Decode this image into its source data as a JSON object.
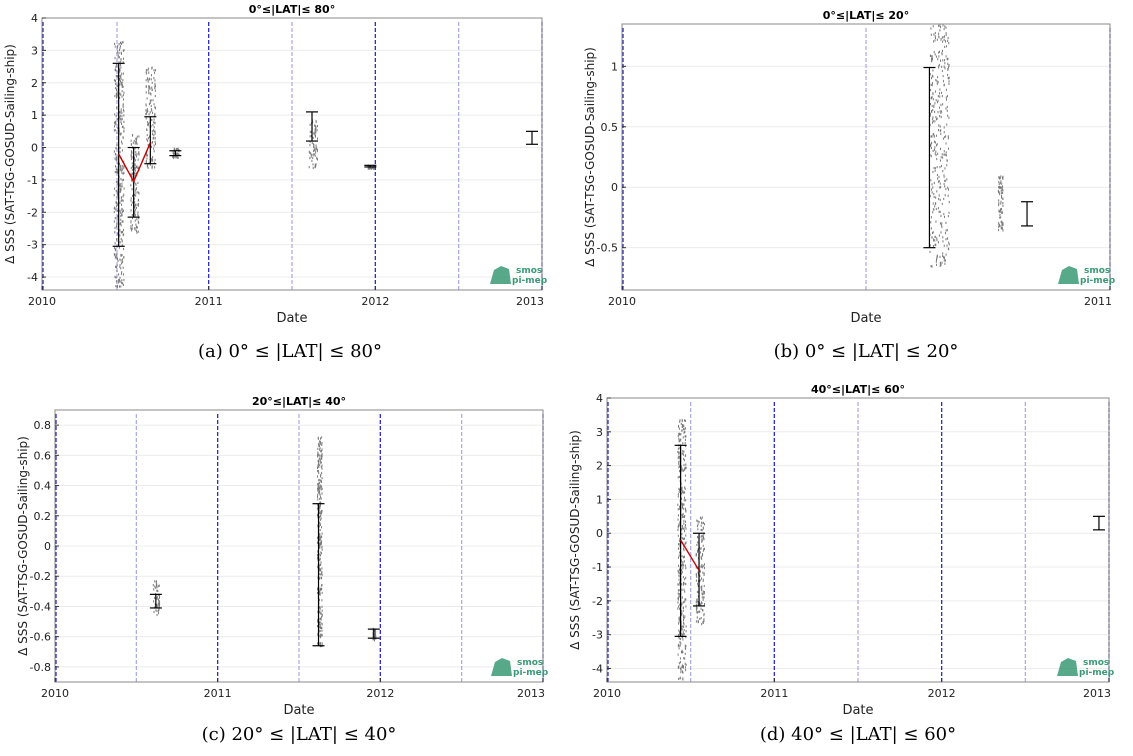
{
  "chart_data": [
    {
      "type": "scatter",
      "title": "0°≤|LAT|≤ 80°",
      "xlabel": "Date",
      "ylabel": "Δ SSS (SAT-TSG-GOSUD-Sailing-ship)",
      "caption": "(a) 0° ≤ |LAT| ≤ 80°",
      "xlim": [
        2010,
        2013
      ],
      "ylim": [
        -4.4,
        4
      ],
      "xticks": [
        2010,
        2011,
        2012,
        2013
      ],
      "xtick_labels": [
        "2010",
        "2011",
        "2012",
        "2013"
      ],
      "yticks": [
        -4,
        -3,
        -2,
        -1,
        0,
        1,
        2,
        3,
        4
      ],
      "year_lines": [
        2011,
        2012,
        2013
      ],
      "halfyear_lines": [
        2010.45,
        2011.5,
        2012.5
      ],
      "errorbars": [
        {
          "x": 2010.46,
          "low": -3.05,
          "high": 2.6
        },
        {
          "x": 2010.55,
          "low": -2.15,
          "high": 0.0
        },
        {
          "x": 2010.65,
          "low": -0.5,
          "high": 0.95
        },
        {
          "x": 2010.8,
          "low": -0.25,
          "high": -0.1
        },
        {
          "x": 2011.62,
          "low": 0.2,
          "high": 1.1
        },
        {
          "x": 2011.97,
          "low": -0.6,
          "high": -0.55
        },
        {
          "x": 2012.94,
          "low": 0.1,
          "high": 0.5
        }
      ],
      "mean_line": {
        "x": [
          2010.46,
          2010.55,
          2010.65
        ],
        "y": [
          -0.2,
          -1.05,
          0.15
        ]
      },
      "scatter_clusters": [
        {
          "x0": 2010.43,
          "x1": 2010.49,
          "y0": -4.3,
          "y1": 3.3
        },
        {
          "x0": 2010.53,
          "x1": 2010.58,
          "y0": -2.6,
          "y1": 0.5
        },
        {
          "x0": 2010.62,
          "x1": 2010.68,
          "y0": -0.6,
          "y1": 2.6
        },
        {
          "x0": 2010.78,
          "x1": 2010.82,
          "y0": -0.3,
          "y1": 0.0
        },
        {
          "x0": 2011.6,
          "x1": 2011.65,
          "y0": -0.6,
          "y1": 1.0
        },
        {
          "x0": 2011.95,
          "x1": 2011.99,
          "y0": -0.62,
          "y1": -0.52
        }
      ]
    },
    {
      "type": "scatter",
      "title": "0°≤|LAT|≤ 20°",
      "xlabel": "Date",
      "ylabel": "Δ SSS (SAT-TSG-GOSUD-Sailing-ship)",
      "caption": "(b) 0° ≤ |LAT| ≤ 20°",
      "xlim": [
        2010,
        2011
      ],
      "ylim": [
        -0.85,
        1.35
      ],
      "xticks": [
        2010,
        2011
      ],
      "xtick_labels": [
        "2010",
        "2011"
      ],
      "yticks": [
        -0.5,
        0,
        0.5,
        1
      ],
      "year_lines": [
        2011
      ],
      "halfyear_lines": [
        2010.5
      ],
      "errorbars": [
        {
          "x": 2010.63,
          "low": -0.5,
          "high": 0.99
        },
        {
          "x": 2010.83,
          "low": -0.32,
          "high": -0.12
        }
      ],
      "mean_line": null,
      "scatter_clusters": [
        {
          "x0": 2010.63,
          "x1": 2010.67,
          "y0": -0.65,
          "y1": 1.35
        },
        {
          "x0": 2010.77,
          "x1": 2010.78,
          "y0": -0.35,
          "y1": 0.1
        }
      ]
    },
    {
      "type": "scatter",
      "title": "20°≤|LAT|≤ 40°",
      "xlabel": "Date",
      "ylabel": "Δ SSS (SAT-TSG-GOSUD-Sailing-ship)",
      "caption": "(c) 20° ≤ |LAT| ≤ 40°",
      "xlim": [
        2010,
        2013
      ],
      "ylim": [
        -0.9,
        0.9
      ],
      "xticks": [
        2010,
        2011,
        2012,
        2013
      ],
      "xtick_labels": [
        "2010",
        "2011",
        "2012",
        "2013"
      ],
      "yticks": [
        -0.8,
        -0.6,
        -0.4,
        -0.2,
        0,
        0.2,
        0.4,
        0.6,
        0.8
      ],
      "year_lines": [
        2011,
        2012,
        2013
      ],
      "halfyear_lines": [
        2010.5,
        2011.5,
        2012.5
      ],
      "errorbars": [
        {
          "x": 2010.62,
          "low": -0.41,
          "high": -0.32
        },
        {
          "x": 2011.62,
          "low": -0.66,
          "high": 0.28
        },
        {
          "x": 2011.96,
          "low": -0.61,
          "high": -0.55
        }
      ],
      "mean_line": null,
      "scatter_clusters": [
        {
          "x0": 2010.6,
          "x1": 2010.64,
          "y0": -0.45,
          "y1": -0.22
        },
        {
          "x0": 2011.61,
          "x1": 2011.64,
          "y0": -0.66,
          "y1": 0.73
        },
        {
          "x0": 2011.95,
          "x1": 2011.97,
          "y0": -0.62,
          "y1": -0.54
        }
      ]
    },
    {
      "type": "scatter",
      "title": "40°≤|LAT|≤ 60°",
      "xlabel": "Date",
      "ylabel": "Δ SSS (SAT-TSG-GOSUD-Sailing-ship)",
      "caption": "(d) 40° ≤ |LAT| ≤ 60°",
      "xlim": [
        2010,
        2013
      ],
      "ylim": [
        -4.4,
        4
      ],
      "xticks": [
        2010,
        2011,
        2012,
        2013
      ],
      "xtick_labels": [
        "2010",
        "2011",
        "2012",
        "2013"
      ],
      "yticks": [
        -4,
        -3,
        -2,
        -1,
        0,
        1,
        2,
        3,
        4
      ],
      "year_lines": [
        2011,
        2012,
        2013
      ],
      "halfyear_lines": [
        2010.5,
        2011.5,
        2012.5
      ],
      "errorbars": [
        {
          "x": 2010.44,
          "low": -3.05,
          "high": 2.6
        },
        {
          "x": 2010.55,
          "low": -2.15,
          "high": 0.0
        },
        {
          "x": 2012.94,
          "low": 0.1,
          "high": 0.5
        }
      ],
      "mean_line": {
        "x": [
          2010.44,
          2010.55
        ],
        "y": [
          -0.2,
          -1.1
        ]
      },
      "scatter_clusters": [
        {
          "x0": 2010.42,
          "x1": 2010.47,
          "y0": -4.3,
          "y1": 3.4
        },
        {
          "x0": 2010.53,
          "x1": 2010.58,
          "y0": -2.7,
          "y1": 0.5
        }
      ]
    }
  ],
  "logo": {
    "line1": "smos",
    "line2": "pi-mep",
    "color": "#3a9a76"
  },
  "colors": {
    "year_line": "#2b2bc8",
    "halfyear_line": "#a7a7ea",
    "mean_line": "#cc0000",
    "scatter": "#7a7a7a",
    "errorbar": "#000000"
  }
}
